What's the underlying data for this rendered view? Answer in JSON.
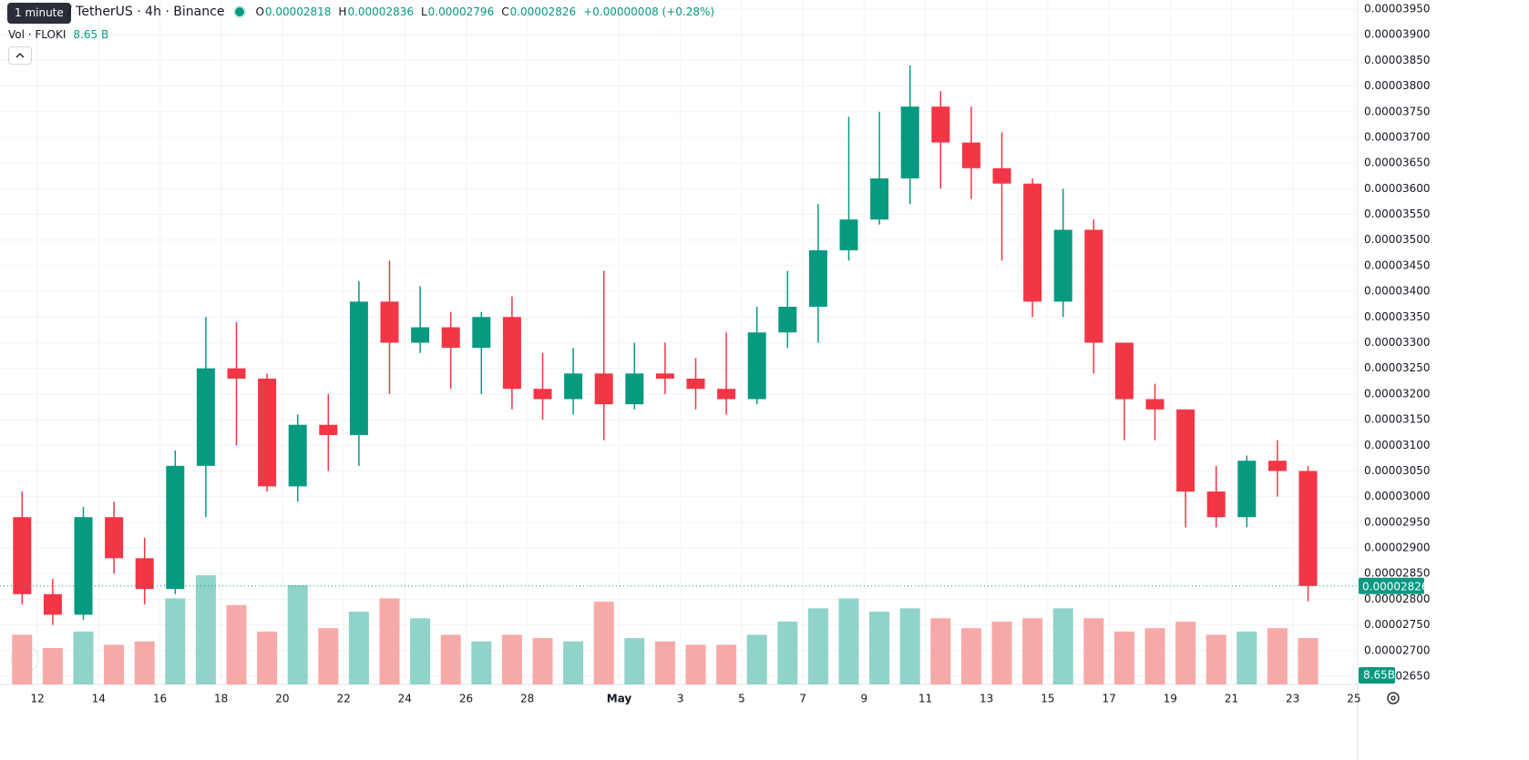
{
  "header": {
    "tooltip": "1 minute",
    "symbol": "/ TetherUS · 4h · Binance",
    "ohlc": [
      {
        "label": "O",
        "value": "0.00002818"
      },
      {
        "label": "H",
        "value": "0.00002836"
      },
      {
        "label": "L",
        "value": "0.00002796"
      },
      {
        "label": "C",
        "value": "0.00002826"
      }
    ],
    "change": "+0.00000008 (+0.28%)",
    "volume_label": "Vol · FLOKI",
    "volume_value": "8.65 B"
  },
  "price_tag": "0.00002826",
  "volume_tag": "8.65B",
  "chart_data": {
    "type": "candlestick",
    "up_color": "#089981",
    "down_color": "#f23645",
    "volume_up_color": "#8fd3c9",
    "volume_down_color": "#f7a9a7",
    "categories": [
      null,
      "12",
      null,
      "14",
      null,
      "16",
      null,
      "18",
      null,
      "20",
      null,
      "22",
      null,
      "24",
      null,
      "26",
      null,
      "28",
      null,
      null,
      "May",
      null,
      "3",
      null,
      "5",
      null,
      "7",
      null,
      "9",
      null,
      "11",
      null,
      "13",
      null,
      "15",
      null,
      "17",
      null,
      "19",
      null,
      "21",
      null,
      "23",
      null,
      "25"
    ],
    "open": [
      2.96e-05,
      2.81e-05,
      2.77e-05,
      2.96e-05,
      2.88e-05,
      2.82e-05,
      3.06e-05,
      3.25e-05,
      3.23e-05,
      3.02e-05,
      3.14e-05,
      3.12e-05,
      3.38e-05,
      3.3e-05,
      3.33e-05,
      3.29e-05,
      3.35e-05,
      3.21e-05,
      3.19e-05,
      3.24e-05,
      3.18e-05,
      3.24e-05,
      3.23e-05,
      3.21e-05,
      3.19e-05,
      3.32e-05,
      3.37e-05,
      3.48e-05,
      3.54e-05,
      3.62e-05,
      3.76e-05,
      3.69e-05,
      3.64e-05,
      3.61e-05,
      3.38e-05,
      3.52e-05,
      3.3e-05,
      3.19e-05,
      3.17e-05,
      3.01e-05,
      2.96e-05,
      3.07e-05,
      3.05e-05,
      null,
      null
    ],
    "high": [
      3.01e-05,
      2.84e-05,
      2.98e-05,
      2.99e-05,
      2.92e-05,
      3.09e-05,
      3.35e-05,
      3.34e-05,
      3.24e-05,
      3.16e-05,
      3.2e-05,
      3.42e-05,
      3.46e-05,
      3.41e-05,
      3.36e-05,
      3.36e-05,
      3.39e-05,
      3.28e-05,
      3.29e-05,
      3.44e-05,
      3.3e-05,
      3.3e-05,
      3.27e-05,
      3.32e-05,
      3.37e-05,
      3.44e-05,
      3.57e-05,
      3.74e-05,
      3.75e-05,
      3.84e-05,
      3.79e-05,
      3.76e-05,
      3.71e-05,
      3.62e-05,
      3.6e-05,
      3.54e-05,
      3.3e-05,
      3.22e-05,
      3.17e-05,
      3.06e-05,
      3.08e-05,
      3.11e-05,
      3.06e-05,
      null,
      null
    ],
    "low": [
      2.79e-05,
      2.75e-05,
      2.76e-05,
      2.85e-05,
      2.79e-05,
      2.81e-05,
      2.96e-05,
      3.1e-05,
      3.01e-05,
      2.99e-05,
      3.05e-05,
      3.06e-05,
      3.2e-05,
      3.28e-05,
      3.21e-05,
      3.2e-05,
      3.17e-05,
      3.15e-05,
      3.16e-05,
      3.11e-05,
      3.17e-05,
      3.2e-05,
      3.17e-05,
      3.16e-05,
      3.18e-05,
      3.29e-05,
      3.3e-05,
      3.46e-05,
      3.53e-05,
      3.57e-05,
      3.6e-05,
      3.58e-05,
      3.46e-05,
      3.35e-05,
      3.35e-05,
      3.24e-05,
      3.11e-05,
      3.11e-05,
      2.94e-05,
      2.94e-05,
      2.94e-05,
      3e-05,
      2.796e-05,
      null,
      null
    ],
    "close": [
      2.81e-05,
      2.77e-05,
      2.96e-05,
      2.88e-05,
      2.82e-05,
      3.06e-05,
      3.25e-05,
      3.23e-05,
      3.02e-05,
      3.14e-05,
      3.12e-05,
      3.38e-05,
      3.3e-05,
      3.33e-05,
      3.29e-05,
      3.35e-05,
      3.21e-05,
      3.19e-05,
      3.24e-05,
      3.18e-05,
      3.24e-05,
      3.23e-05,
      3.21e-05,
      3.19e-05,
      3.32e-05,
      3.37e-05,
      3.48e-05,
      3.54e-05,
      3.62e-05,
      3.76e-05,
      3.69e-05,
      3.64e-05,
      3.61e-05,
      3.38e-05,
      3.52e-05,
      3.3e-05,
      3.19e-05,
      3.17e-05,
      3.01e-05,
      2.96e-05,
      3.07e-05,
      3.05e-05,
      2.826e-05,
      null,
      null
    ],
    "volume": [
      150,
      110,
      160,
      120,
      130,
      260,
      330,
      240,
      160,
      300,
      170,
      220,
      260,
      200,
      150,
      130,
      150,
      140,
      130,
      250,
      140,
      130,
      120,
      120,
      150,
      190,
      230,
      260,
      220,
      230,
      200,
      170,
      190,
      200,
      230,
      200,
      160,
      170,
      190,
      150,
      160,
      170,
      140,
      null,
      null
    ],
    "ylim": [
      2.65e-05,
      3.95e-05
    ],
    "yticks": [
      {
        "value": 3.95e-05,
        "label": "0.00003950"
      },
      {
        "value": 3.9e-05,
        "label": "0.00003900"
      },
      {
        "value": 3.85e-05,
        "label": "0.00003850"
      },
      {
        "value": 3.8e-05,
        "label": "0.00003800"
      },
      {
        "value": 3.75e-05,
        "label": "0.00003750"
      },
      {
        "value": 3.7e-05,
        "label": "0.00003700"
      },
      {
        "value": 3.65e-05,
        "label": "0.00003650"
      },
      {
        "value": 3.6e-05,
        "label": "0.00003600"
      },
      {
        "value": 3.55e-05,
        "label": "0.00003550"
      },
      {
        "value": 3.5e-05,
        "label": "0.00003500"
      },
      {
        "value": 3.45e-05,
        "label": "0.00003450"
      },
      {
        "value": 3.4e-05,
        "label": "0.00003400"
      },
      {
        "value": 3.35e-05,
        "label": "0.00003350"
      },
      {
        "value": 3.3e-05,
        "label": "0.00003300"
      },
      {
        "value": 3.25e-05,
        "label": "0.00003250"
      },
      {
        "value": 3.2e-05,
        "label": "0.00003200"
      },
      {
        "value": 3.15e-05,
        "label": "0.00003150"
      },
      {
        "value": 3.1e-05,
        "label": "0.00003100"
      },
      {
        "value": 3.05e-05,
        "label": "0.00003050"
      },
      {
        "value": 3e-05,
        "label": "0.00003000"
      },
      {
        "value": 2.95e-05,
        "label": "0.00002950"
      },
      {
        "value": 2.9e-05,
        "label": "0.00002900"
      },
      {
        "value": 2.85e-05,
        "label": "0.00002850"
      },
      {
        "value": 2.8e-05,
        "label": "0.00002800"
      },
      {
        "value": 2.75e-05,
        "label": "0.00002750"
      },
      {
        "value": 2.7e-05,
        "label": "0.00002700"
      },
      {
        "value": 2.65e-05,
        "label": "0.00002650"
      }
    ],
    "last_price": 2.826e-05,
    "grid": true
  }
}
